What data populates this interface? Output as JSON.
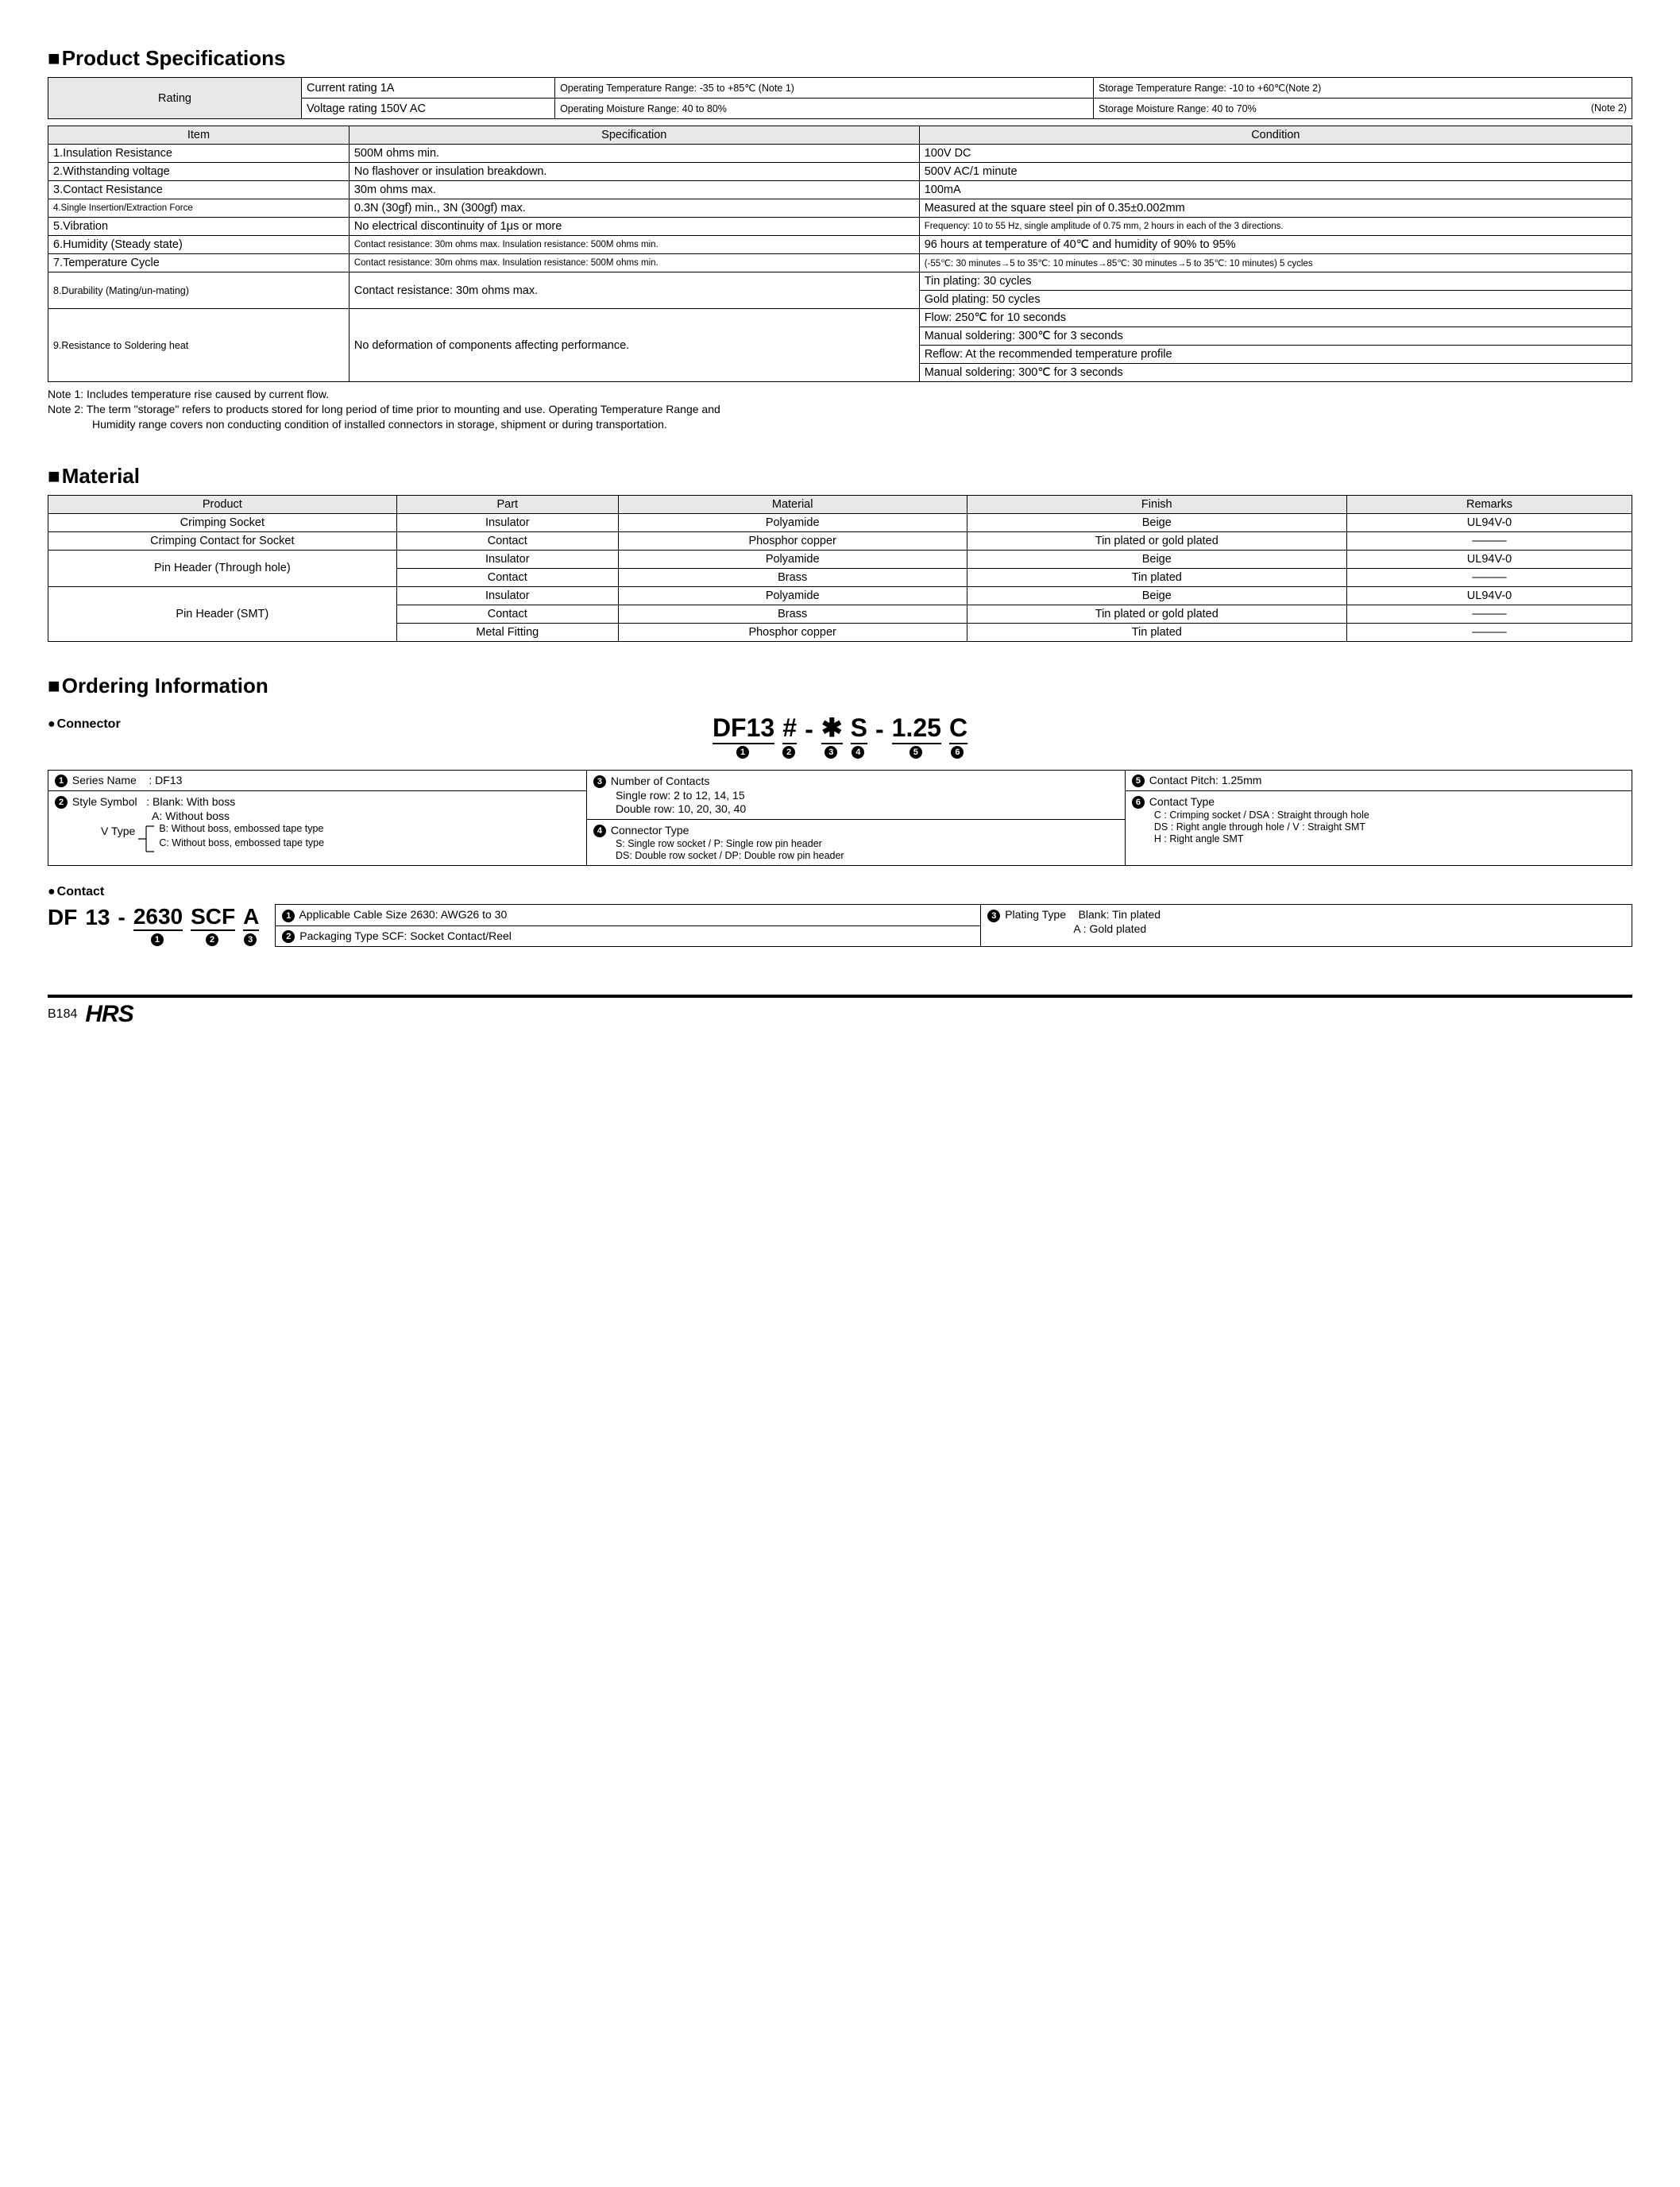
{
  "sections": {
    "spec": "Product Specifications",
    "material": "Material",
    "ordering": "Ordering Information"
  },
  "rating_table": {
    "header": "Rating",
    "r1c1": "Current rating  1A",
    "r1c2": "Operating Temperature Range: -35 to +85℃ (Note 1)",
    "r1c3": "Storage Temperature Range: -10 to +60℃(Note 2)",
    "r2c1": "Voltage rating  150V AC",
    "r2c2": "Operating Moisture Range: 40 to 80%",
    "r2c3_a": "Storage Moisture Range: 40 to 70%",
    "r2c3_b": "(Note 2)"
  },
  "spec_table": {
    "h_item": "Item",
    "h_spec": "Specification",
    "h_cond": "Condition",
    "rows": [
      {
        "item": "1.Insulation Resistance",
        "spec": "500M ohms min.",
        "cond": "100V DC"
      },
      {
        "item": "2.Withstanding voltage",
        "spec": "No flashover or insulation breakdown.",
        "cond": "500V AC/1 minute"
      },
      {
        "item": "3.Contact Resistance",
        "spec": "30m ohms max.",
        "cond": "100mA"
      },
      {
        "item": "4.Single Insertion/Extraction Force",
        "spec": "0.3N (30gf) min., 3N (300gf) max.",
        "cond": "Measured at the square steel pin of 0.35±0.002mm",
        "item_small": true
      },
      {
        "item": "5.Vibration",
        "spec": "No electrical discontinuity of 1μs or more",
        "cond": "Frequency: 10 to 55 Hz, single amplitude of 0.75 mm, 2 hours in each of the 3 directions.",
        "cond_small": true
      },
      {
        "item": "6.Humidity (Steady state)",
        "spec": "Contact resistance: 30m ohms max. Insulation resistance: 500M ohms min.",
        "cond": "96 hours at temperature of 40℃ and humidity of 90% to 95%",
        "spec_small": true
      },
      {
        "item": "7.Temperature Cycle",
        "spec": "Contact resistance: 30m ohms max. Insulation resistance: 500M ohms min.",
        "cond": "(-55℃: 30 minutes→5 to 35℃: 10 minutes→85℃: 30 minutes→5 to 35℃: 10 minutes) 5 cycles",
        "spec_small": true,
        "cond_small": true
      }
    ],
    "row8_item": "8.Durability (Mating/un-mating)",
    "row8_spec": "Contact resistance: 30m ohms max.",
    "row8_c1": "Tin plating: 30 cycles",
    "row8_c2": "Gold plating: 50 cycles",
    "row9_item": "9.Resistance to Soldering heat",
    "row9_spec": "No deformation of components affecting performance.",
    "row9_c1": "Flow: 250℃ for 10 seconds",
    "row9_c2": "Manual soldering: 300℃ for 3 seconds",
    "row9_c3": "Reflow: At the recommended temperature profile",
    "row9_c4": "Manual soldering: 300℃ for 3 seconds"
  },
  "notes": {
    "n1": "Note 1: Includes temperature rise caused by current flow.",
    "n2": "Note 2: The term \"storage\" refers to products stored for long period of time prior to mounting and use. Operating Temperature Range and",
    "n2b": "Humidity range covers non conducting condition of installed connectors in storage, shipment or during transportation."
  },
  "material_table": {
    "h_product": "Product",
    "h_part": "Part",
    "h_material": "Material",
    "h_finish": "Finish",
    "h_remarks": "Remarks",
    "dash": "———",
    "rows": [
      {
        "product": "Crimping Socket",
        "part": "Insulator",
        "material": "Polyamide",
        "finish": "Beige",
        "remarks": "UL94V-0"
      },
      {
        "product": "Crimping Contact for Socket",
        "part": "Contact",
        "material": "Phosphor copper",
        "finish": "Tin plated or gold plated",
        "remarks": "———"
      }
    ],
    "pin_th": "Pin Header (Through hole)",
    "pin_th_rows": [
      {
        "part": "Insulator",
        "material": "Polyamide",
        "finish": "Beige",
        "remarks": "UL94V-0"
      },
      {
        "part": "Contact",
        "material": "Brass",
        "finish": "Tin plated",
        "remarks": "———"
      }
    ],
    "pin_smt": "Pin Header (SMT)",
    "pin_smt_rows": [
      {
        "part": "Insulator",
        "material": "Polyamide",
        "finish": "Beige",
        "remarks": "UL94V-0"
      },
      {
        "part": "Contact",
        "material": "Brass",
        "finish": "Tin plated or gold plated",
        "remarks": "———"
      },
      {
        "part": "Metal Fitting",
        "material": "Phosphor copper",
        "finish": "Tin plated",
        "remarks": "———"
      }
    ]
  },
  "ordering": {
    "connector_label": "Connector",
    "contact_label": "Contact",
    "code": {
      "p1": "DF13",
      "p2": "#",
      "p3": "✱",
      "p4": "S",
      "p5": "1.25",
      "p6": "C"
    },
    "legend": {
      "l1_t": "Series Name",
      "l1_v": ": DF13",
      "l2_t": "Style Symbol",
      "l2_v": ": Blank: With boss",
      "l2_a": "A: Without boss",
      "l2_vtype": "V Type",
      "l2_b": "B: Without boss, embossed tape type",
      "l2_c": "C: Without boss, embossed tape type",
      "l3_t": "Number of Contacts",
      "l3_a": "Single row: 2 to 12, 14, 15",
      "l3_b": "Double row: 10, 20, 30, 40",
      "l4_t": "Connector Type",
      "l4_a": "S: Single row socket / P: Single row pin header",
      "l4_b": "DS: Double row socket / DP: Double row pin header",
      "l5_t": "Contact Pitch: 1.25mm",
      "l6_t": "Contact Type",
      "l6_a": "C : Crimping socket / DSA : Straight through hole",
      "l6_b": "DS : Right angle through hole / V : Straight SMT",
      "l6_c": "H : Right angle SMT"
    },
    "contact_code": {
      "p0": "DF",
      "p0b": "13",
      "p1": "2630",
      "p2": "SCF",
      "p3": "A"
    },
    "contact_legend": {
      "c1": "Applicable Cable Size  2630: AWG26 to 30",
      "c2": "Packaging Type  SCF: Socket Contact/Reel",
      "c3_t": "Plating Type",
      "c3_a": "Blank: Tin plated",
      "c3_b": "A   : Gold plated"
    }
  },
  "footer": {
    "page": "B184",
    "logo": "HRS"
  }
}
